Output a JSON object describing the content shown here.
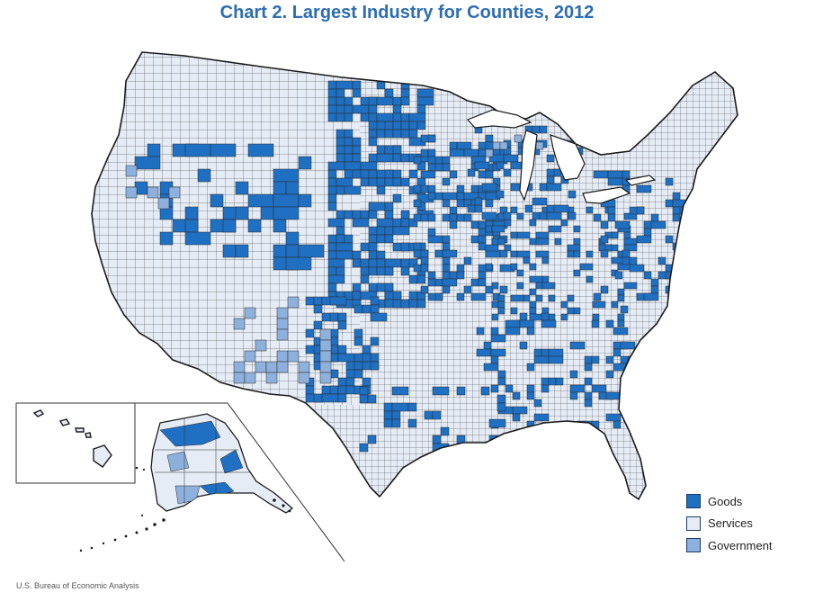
{
  "title": "Chart 2. Largest Industry for Counties, 2012",
  "legend": [
    {
      "label": "Goods",
      "color": "#1f6fc2"
    },
    {
      "label": "Services",
      "color": "#e6ecf6"
    },
    {
      "label": "Government",
      "color": "#8eb0dc"
    }
  ],
  "source": "U.S. Bureau of Economic Analysis",
  "colors": {
    "outline": "#1a1a1a",
    "county_border": "#2a2a2a",
    "title": "#2d6db2"
  }
}
